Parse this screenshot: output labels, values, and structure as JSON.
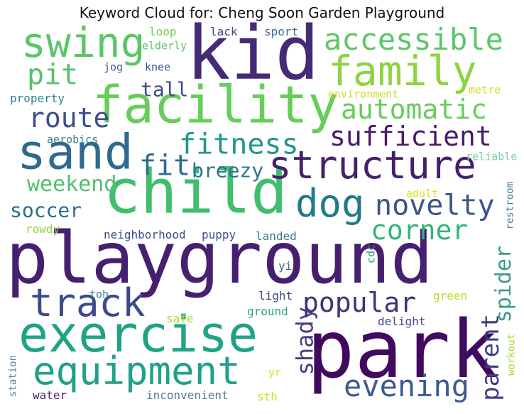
{
  "chart_data": {
    "type": "wordcloud",
    "title": "Keyword Cloud for: Cheng Soon Garden Playground",
    "words": [
      {
        "text": "playground",
        "weight": 100,
        "color": "#46206e",
        "vertical": false
      },
      {
        "text": "park",
        "weight": 68,
        "color": "#420a5e",
        "vertical": false
      },
      {
        "text": "kid",
        "weight": 66,
        "color": "#442b73",
        "vertical": false
      },
      {
        "text": "child",
        "weight": 58,
        "color": "#3fbe6e",
        "vertical": false
      },
      {
        "text": "exercise",
        "weight": 52,
        "color": "#20a385",
        "vertical": false
      },
      {
        "text": "facility",
        "weight": 50,
        "color": "#68cc5a",
        "vertical": false
      },
      {
        "text": "sand",
        "weight": 46,
        "color": "#2e6a8e",
        "vertical": false
      },
      {
        "text": "structure",
        "weight": 44,
        "color": "#46206e",
        "vertical": false
      },
      {
        "text": "equipment",
        "weight": 42,
        "color": "#21a189",
        "vertical": false
      },
      {
        "text": "track",
        "weight": 40,
        "color": "#3c4a8b",
        "vertical": false
      },
      {
        "text": "swing",
        "weight": 40,
        "color": "#5ac666",
        "vertical": false
      },
      {
        "text": "family",
        "weight": 40,
        "color": "#8ed341",
        "vertical": false
      },
      {
        "text": "dog",
        "weight": 38,
        "color": "#22798b",
        "vertical": false
      },
      {
        "text": "evening",
        "weight": 33,
        "color": "#3e5c8e",
        "vertical": false
      },
      {
        "text": "sufficient",
        "weight": 32,
        "color": "#4a1a6c",
        "vertical": false
      },
      {
        "text": "popular",
        "weight": 31,
        "color": "#42307a",
        "vertical": false
      },
      {
        "text": "novelty",
        "weight": 31,
        "color": "#3b5388",
        "vertical": false
      },
      {
        "text": "automatic",
        "weight": 31,
        "color": "#67cc5c",
        "vertical": false
      },
      {
        "text": "accessible",
        "weight": 31,
        "color": "#5cc66a",
        "vertical": false
      },
      {
        "text": "corner",
        "weight": 30,
        "color": "#31b67a",
        "vertical": false
      },
      {
        "text": "fitness",
        "weight": 30,
        "color": "#21978c",
        "vertical": false
      },
      {
        "text": "parent",
        "weight": 30,
        "color": "#403c84",
        "vertical": true
      },
      {
        "text": "route",
        "weight": 30,
        "color": "#3b4e8a",
        "vertical": false
      },
      {
        "text": "shady",
        "weight": 30,
        "color": "#4b3a82",
        "vertical": true
      },
      {
        "text": "pit",
        "weight": 30,
        "color": "#55c16b",
        "vertical": false
      },
      {
        "text": "fit",
        "weight": 30,
        "color": "#2f6b8e",
        "vertical": false
      },
      {
        "text": "weekend",
        "weight": 25,
        "color": "#4fbf70",
        "vertical": false
      },
      {
        "text": "soccer",
        "weight": 23,
        "color": "#2b6d8e",
        "vertical": false
      },
      {
        "text": "breezy",
        "weight": 22,
        "color": "#2b758e",
        "vertical": false
      },
      {
        "text": "spider",
        "weight": 22,
        "color": "#3a9b8a",
        "vertical": true
      },
      {
        "text": "tall",
        "weight": 22,
        "color": "#3b4b85",
        "vertical": false
      },
      {
        "text": "neighborhood",
        "weight": 14,
        "color": "#3d4c8a",
        "vertical": false
      },
      {
        "text": "puppy",
        "weight": 14,
        "color": "#3d4c8a",
        "vertical": false
      },
      {
        "text": "landed",
        "weight": 13,
        "color": "#337b8d",
        "vertical": false
      },
      {
        "text": "lack",
        "weight": 13,
        "color": "#3e4a89",
        "vertical": false
      },
      {
        "text": "sport",
        "weight": 13,
        "color": "#3e6a8c",
        "vertical": false
      },
      {
        "text": "loop",
        "weight": 13,
        "color": "#74d055",
        "vertical": false
      },
      {
        "text": "elderly",
        "weight": 13,
        "color": "#5ac864",
        "vertical": false
      },
      {
        "text": "knee",
        "weight": 13,
        "color": "#3b5088",
        "vertical": false
      },
      {
        "text": "jog",
        "weight": 12,
        "color": "#4a5a88",
        "vertical": false
      },
      {
        "text": "property",
        "weight": 13,
        "color": "#2f828e",
        "vertical": false
      },
      {
        "text": "aerobics",
        "weight": 13,
        "color": "#3a7d8d",
        "vertical": false
      },
      {
        "text": "environment",
        "weight": 13,
        "color": "#c6df25",
        "vertical": false
      },
      {
        "text": "metre",
        "weight": 13,
        "color": "#d4e21a",
        "vertical": false
      },
      {
        "text": "reliable",
        "weight": 13,
        "color": "#7fcfa8",
        "vertical": false
      },
      {
        "text": "restroom",
        "weight": 13,
        "color": "#3e7f8e",
        "vertical": true
      },
      {
        "text": "adult",
        "weight": 13,
        "color": "#d8e219",
        "vertical": false
      },
      {
        "text": "rowdy",
        "weight": 13,
        "color": "#8fd744",
        "vertical": false
      },
      {
        "text": "cdc",
        "weight": 13,
        "color": "#3a8f8c",
        "vertical": true
      },
      {
        "text": "yi",
        "weight": 13,
        "color": "#2e6f8e",
        "vertical": false
      },
      {
        "text": "toh",
        "weight": 13,
        "color": "#3b7a90",
        "vertical": false
      },
      {
        "text": "light",
        "weight": 13,
        "color": "#3e4a89",
        "vertical": false
      },
      {
        "text": "green",
        "weight": 13,
        "color": "#b5de2b",
        "vertical": false
      },
      {
        "text": "safe",
        "weight": 13,
        "color": "#a8db34",
        "vertical": false
      },
      {
        "text": "ground",
        "weight": 13,
        "color": "#2aa383",
        "vertical": false
      },
      {
        "text": "delight",
        "weight": 13,
        "color": "#3f4688",
        "vertical": false
      },
      {
        "text": "workout",
        "weight": 13,
        "color": "#a2da37",
        "vertical": true
      },
      {
        "text": "station",
        "weight": 13,
        "color": "#5a7f96",
        "vertical": true
      },
      {
        "text": "yr",
        "weight": 13,
        "color": "#d8e219",
        "vertical": false
      },
      {
        "text": "water",
        "weight": 13,
        "color": "#4a2070",
        "vertical": false
      },
      {
        "text": "inconvenient",
        "weight": 13,
        "color": "#4c7d90",
        "vertical": false
      },
      {
        "text": "sth",
        "weight": 13,
        "color": "#d2e21b",
        "vertical": false
      }
    ]
  }
}
